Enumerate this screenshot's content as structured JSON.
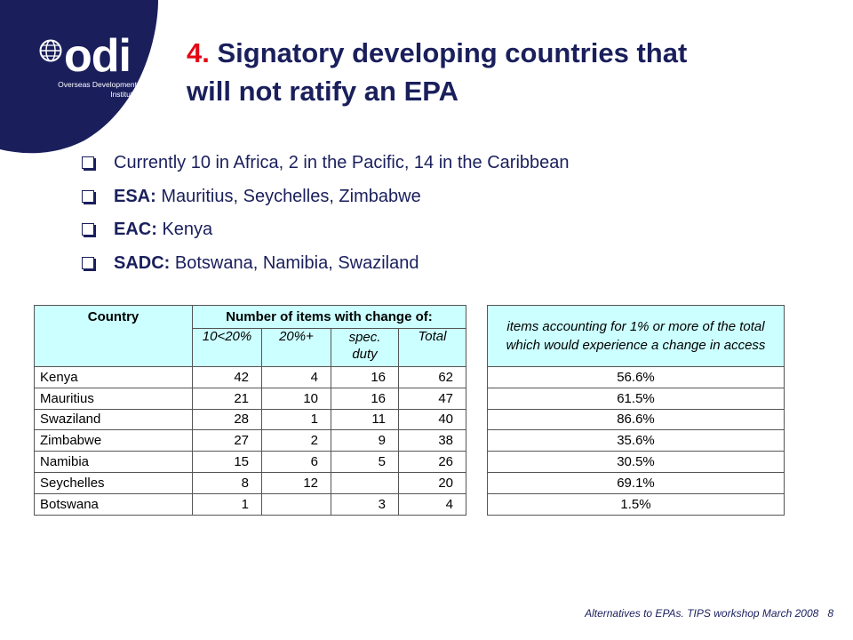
{
  "logo": {
    "letters": "odi",
    "org_line1": "Overseas Development",
    "org_line2": "Institute",
    "color": "#1a1f5c"
  },
  "title": {
    "number": "4.",
    "text_line1": "Signatory developing countries that",
    "text_line2": "will not ratify an EPA"
  },
  "bullets": [
    {
      "bold": "",
      "text": "Currently 10 in Africa, 2 in the Pacific, 14 in the Caribbean"
    },
    {
      "bold": "ESA:",
      "text": " Mauritius, Seychelles, Zimbabwe"
    },
    {
      "bold": "EAC:",
      "text": " Kenya"
    },
    {
      "bold": "SADC:",
      "text": " Botswana, Namibia, Swaziland"
    }
  ],
  "table1": {
    "col_country": "Country",
    "col_group": "Number of items with change of:",
    "sub_headers": [
      "10<20%",
      "20%+",
      "spec. duty",
      "Total"
    ],
    "rows": [
      {
        "country": "Kenya",
        "a": "42",
        "b": "4",
        "c": "16",
        "total": "62"
      },
      {
        "country": "Mauritius",
        "a": "21",
        "b": "10",
        "c": "16",
        "total": "47"
      },
      {
        "country": "Swaziland",
        "a": "28",
        "b": "1",
        "c": "11",
        "total": "40"
      },
      {
        "country": "Zimbabwe",
        "a": "27",
        "b": "2",
        "c": "9",
        "total": "38"
      },
      {
        "country": "Namibia",
        "a": "15",
        "b": "6",
        "c": "5",
        "total": "26"
      },
      {
        "country": "Seychelles",
        "a": "8",
        "b": "12",
        "c": "",
        "total": "20"
      },
      {
        "country": "Botswana",
        "a": "1",
        "b": "",
        "c": "3",
        "total": "4"
      }
    ]
  },
  "table2": {
    "header": "items accounting for 1% or more of the total which would experience a change in access",
    "values": [
      "56.6%",
      "61.5%",
      "86.6%",
      "35.6%",
      "30.5%",
      "69.1%",
      "1.5%"
    ]
  },
  "footer": {
    "text": "Alternatives to EPAs. TIPS workshop March 2008",
    "page": "8"
  },
  "colors": {
    "navy": "#1a1f5c",
    "red": "#e30613",
    "header_fill": "#ccffff"
  }
}
